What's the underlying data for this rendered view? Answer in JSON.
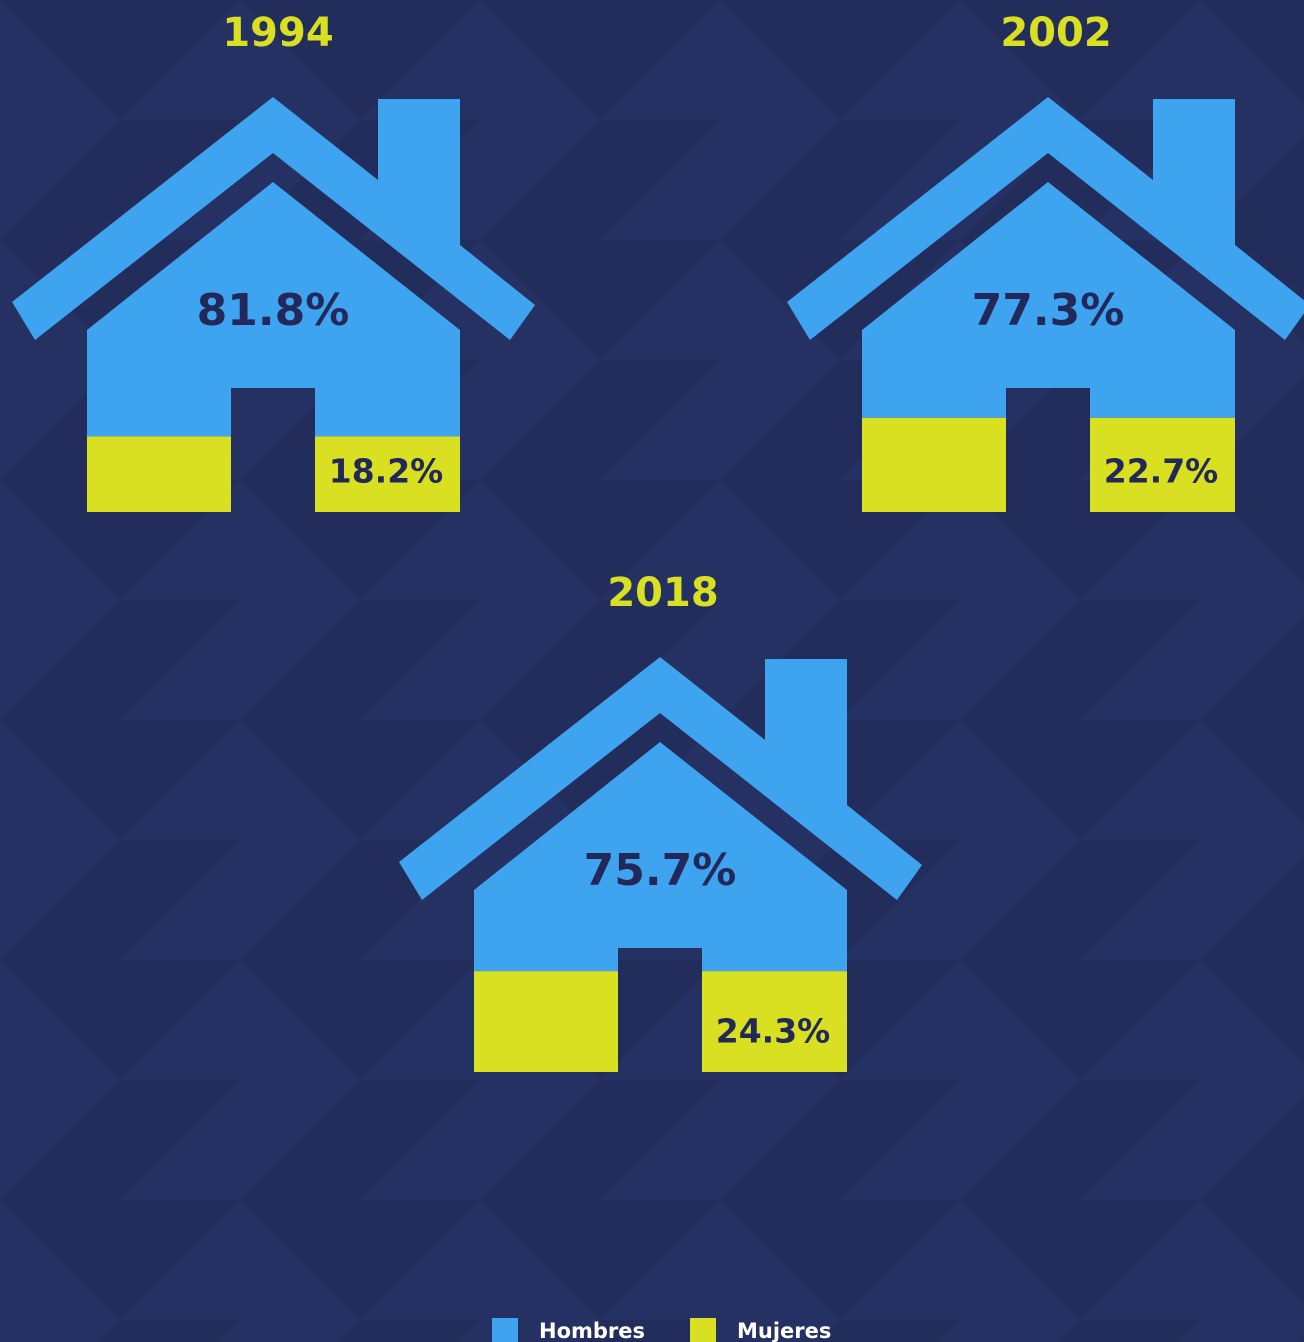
{
  "chart_data": {
    "type": "house-pictograph",
    "categories": [
      "1994",
      "2002",
      "2018"
    ],
    "series": [
      {
        "name": "Hombres",
        "color": "#3fa4ef",
        "values": [
          81.8,
          77.3,
          75.7
        ],
        "value_labels": [
          "81.8%",
          "77.3%",
          "75.7%"
        ]
      },
      {
        "name": "Mujeres",
        "color": "#d9e021",
        "values": [
          18.2,
          22.7,
          24.3
        ],
        "value_labels": [
          "18.2%",
          "22.7%",
          "24.3%"
        ]
      }
    ]
  }
}
